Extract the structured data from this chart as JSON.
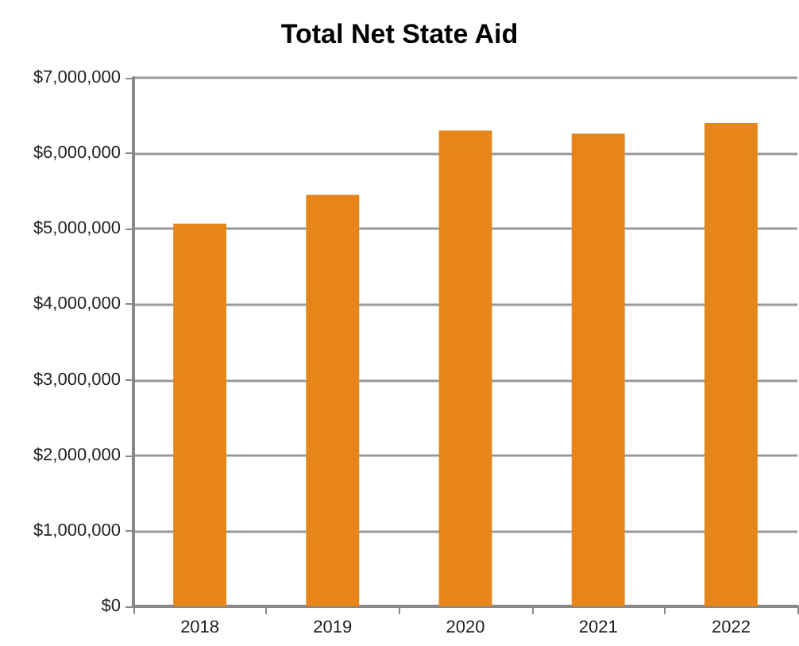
{
  "chart_data": {
    "type": "bar",
    "title": "Total Net State Aid",
    "categories": [
      "2018",
      "2019",
      "2020",
      "2021",
      "2022"
    ],
    "values": [
      5070000,
      5450000,
      6300000,
      6260000,
      6400000
    ],
    "color": "#e6851a",
    "ylim": [
      0,
      7000000
    ],
    "yticks": [
      {
        "value": 0,
        "label": "$0"
      },
      {
        "value": 1000000,
        "label": "$1,000,000"
      },
      {
        "value": 2000000,
        "label": "$2,000,000"
      },
      {
        "value": 3000000,
        "label": "$3,000,000"
      },
      {
        "value": 4000000,
        "label": "$4,000,000"
      },
      {
        "value": 5000000,
        "label": "$5,000,000"
      },
      {
        "value": 6000000,
        "label": "$6,000,000"
      },
      {
        "value": 7000000,
        "label": "$7,000,000"
      }
    ],
    "grid": true
  }
}
